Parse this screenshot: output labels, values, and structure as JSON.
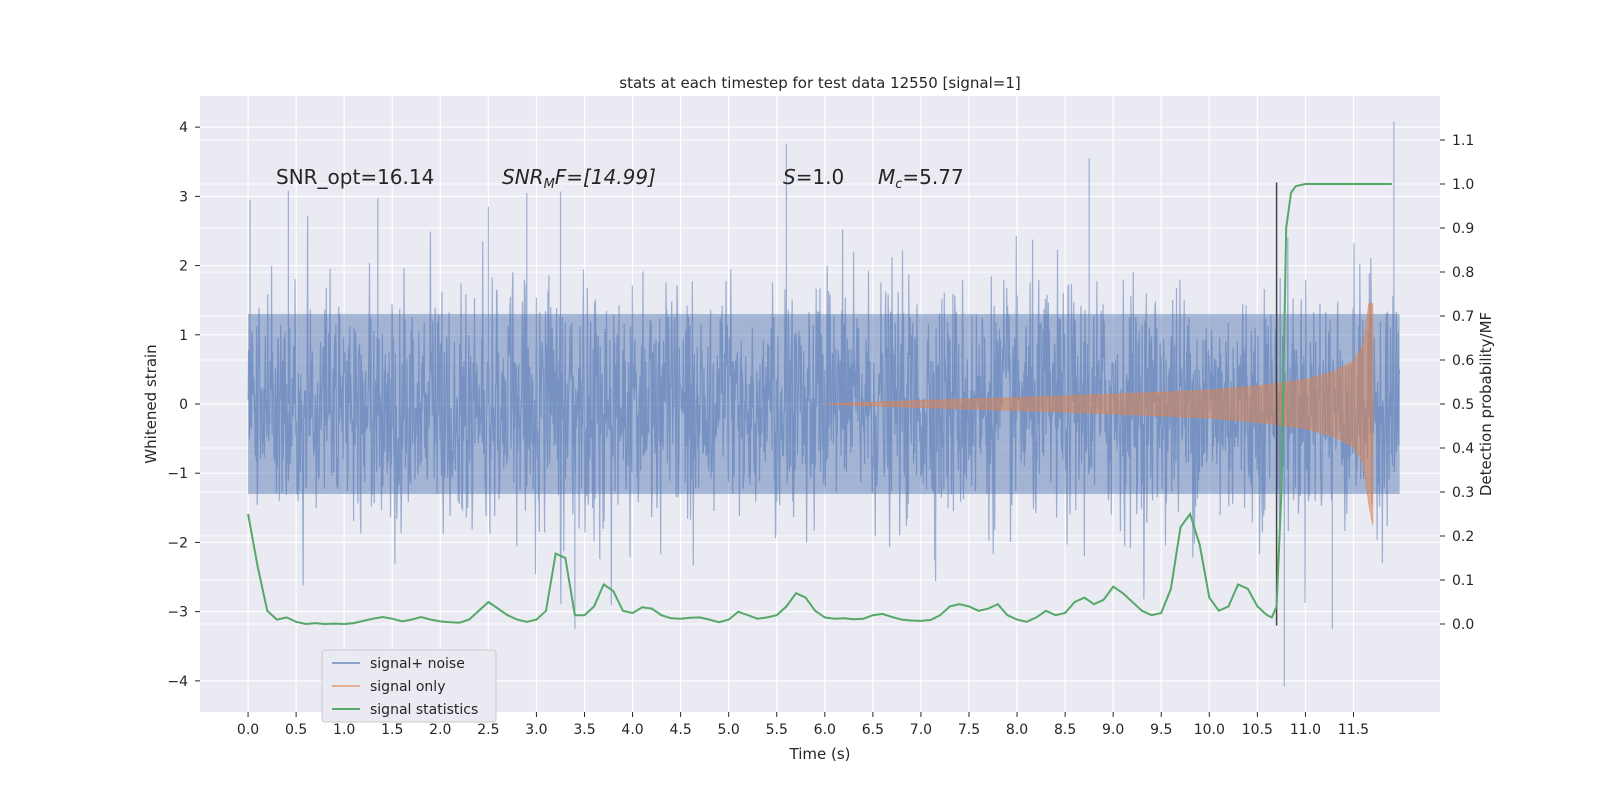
{
  "chart_data": {
    "type": "line",
    "title": "stats at each timestep for test data 12550 [signal=1]",
    "xlabel": "Time (s)",
    "ylabel_left": "Whitened strain",
    "ylabel_right": "Detection probability/MF",
    "xlim": [
      -0.5,
      12.4
    ],
    "ylim_left": [
      -4.45,
      4.45
    ],
    "ylim_right": [
      -0.2,
      1.2
    ],
    "x_ticks": [
      0.0,
      0.5,
      1.0,
      1.5,
      2.0,
      2.5,
      3.0,
      3.5,
      4.0,
      4.5,
      5.0,
      5.5,
      6.0,
      6.5,
      7.0,
      7.5,
      8.0,
      8.5,
      9.0,
      9.5,
      10.0,
      10.5,
      11.0,
      11.5
    ],
    "x_tick_labels": [
      "0.0",
      "0.5",
      "1.0",
      "1.5",
      "2.0",
      "2.5",
      "3.0",
      "3.5",
      "4.0",
      "4.5",
      "5.0",
      "5.5",
      "6.0",
      "6.5",
      "7.0",
      "7.5",
      "8.0",
      "8.5",
      "9.0",
      "9.5",
      "10.0",
      "10.5",
      "11.0",
      "11.5"
    ],
    "y_left_ticks": [
      4,
      3,
      2,
      1,
      0,
      -1,
      -2,
      -3,
      -4
    ],
    "y_left_tick_labels": [
      "4",
      "3",
      "2",
      "1",
      "0",
      "−1",
      "−2",
      "−3",
      "−4"
    ],
    "y_right_ticks": [
      1.1,
      1.0,
      0.9,
      0.8,
      0.7,
      0.6,
      0.5,
      0.4,
      0.3,
      0.2,
      0.1,
      0.0
    ],
    "y_right_tick_labels": [
      "1.1",
      "1.0",
      "0.9",
      "0.8",
      "0.7",
      "0.6",
      "0.5",
      "0.4",
      "0.3",
      "0.2",
      "0.1",
      "0.0"
    ],
    "grid": true,
    "legend_position": "lower-left",
    "series": [
      {
        "name": "signal+ noise",
        "color": "#4c72b0",
        "axis": "left",
        "description_values": {
          "x_range": [
            0.0,
            11.98
          ],
          "typical_band": [
            -1.3,
            1.3
          ],
          "peaks": [
            {
              "x": 0.02,
              "y": 2.95
            },
            {
              "x": 0.42,
              "y": 3.08
            },
            {
              "x": 1.35,
              "y": 2.97
            },
            {
              "x": 2.5,
              "y": 2.85
            },
            {
              "x": 2.9,
              "y": 3.05
            },
            {
              "x": 3.25,
              "y": 3.07
            },
            {
              "x": 5.6,
              "y": 3.75
            },
            {
              "x": 8.75,
              "y": 3.55
            },
            {
              "x": 11.92,
              "y": 4.08
            },
            {
              "x": 3.4,
              "y": -3.25
            },
            {
              "x": 10.78,
              "y": -4.08
            },
            {
              "x": 11.28,
              "y": -3.25
            }
          ]
        }
      },
      {
        "name": "signal only",
        "color": "#dd8452",
        "axis": "left",
        "description_values": {
          "x_start": 6.0,
          "x_end": 11.7,
          "envelope": [
            {
              "x": 6.0,
              "y": 0.0
            },
            {
              "x": 7.0,
              "y": 0.05
            },
            {
              "x": 8.0,
              "y": 0.09
            },
            {
              "x": 9.0,
              "y": 0.14
            },
            {
              "x": 10.0,
              "y": 0.2
            },
            {
              "x": 10.5,
              "y": 0.26
            },
            {
              "x": 11.0,
              "y": 0.35
            },
            {
              "x": 11.3,
              "y": 0.47
            },
            {
              "x": 11.5,
              "y": 0.62
            },
            {
              "x": 11.6,
              "y": 0.85
            },
            {
              "x": 11.66,
              "y": 1.45
            },
            {
              "x": 11.7,
              "y": 1.45
            }
          ],
          "min_at_end": -1.75
        }
      },
      {
        "name": "signal statistics",
        "color": "#55a868",
        "axis": "right",
        "x": [
          0.0,
          0.1,
          0.2,
          0.3,
          0.4,
          0.5,
          0.6,
          0.7,
          0.8,
          0.9,
          1.0,
          1.1,
          1.2,
          1.3,
          1.4,
          1.5,
          1.6,
          1.7,
          1.8,
          1.9,
          2.0,
          2.1,
          2.2,
          2.3,
          2.4,
          2.5,
          2.6,
          2.7,
          2.8,
          2.9,
          3.0,
          3.1,
          3.2,
          3.3,
          3.4,
          3.5,
          3.6,
          3.7,
          3.8,
          3.9,
          4.0,
          4.1,
          4.2,
          4.3,
          4.4,
          4.5,
          4.6,
          4.7,
          4.8,
          4.9,
          5.0,
          5.1,
          5.2,
          5.3,
          5.4,
          5.5,
          5.6,
          5.7,
          5.8,
          5.9,
          6.0,
          6.1,
          6.2,
          6.3,
          6.4,
          6.5,
          6.6,
          6.7,
          6.8,
          6.9,
          7.0,
          7.1,
          7.2,
          7.3,
          7.4,
          7.5,
          7.6,
          7.7,
          7.8,
          7.9,
          8.0,
          8.1,
          8.2,
          8.3,
          8.4,
          8.5,
          8.6,
          8.7,
          8.8,
          8.9,
          9.0,
          9.1,
          9.2,
          9.3,
          9.4,
          9.5,
          9.6,
          9.7,
          9.8,
          9.9,
          10.0,
          10.1,
          10.2,
          10.3,
          10.4,
          10.5,
          10.6,
          10.65,
          10.7,
          10.75,
          10.8,
          10.85,
          10.9,
          11.0,
          11.2,
          11.5,
          11.9
        ],
        "values": [
          0.25,
          0.13,
          0.03,
          0.01,
          0.015,
          0.005,
          0.0,
          0.002,
          0.0,
          0.001,
          0.0,
          0.002,
          0.007,
          0.012,
          0.016,
          0.012,
          0.006,
          0.01,
          0.016,
          0.01,
          0.006,
          0.004,
          0.003,
          0.01,
          0.03,
          0.05,
          0.035,
          0.02,
          0.01,
          0.005,
          0.01,
          0.03,
          0.16,
          0.15,
          0.02,
          0.02,
          0.04,
          0.09,
          0.075,
          0.03,
          0.025,
          0.038,
          0.035,
          0.02,
          0.013,
          0.012,
          0.014,
          0.015,
          0.01,
          0.004,
          0.01,
          0.028,
          0.02,
          0.012,
          0.015,
          0.02,
          0.04,
          0.07,
          0.06,
          0.03,
          0.015,
          0.012,
          0.013,
          0.011,
          0.012,
          0.02,
          0.023,
          0.016,
          0.01,
          0.008,
          0.007,
          0.009,
          0.02,
          0.04,
          0.045,
          0.04,
          0.03,
          0.035,
          0.045,
          0.02,
          0.01,
          0.005,
          0.015,
          0.03,
          0.02,
          0.025,
          0.05,
          0.06,
          0.045,
          0.055,
          0.085,
          0.07,
          0.05,
          0.03,
          0.02,
          0.025,
          0.08,
          0.22,
          0.25,
          0.18,
          0.06,
          0.03,
          0.04,
          0.09,
          0.08,
          0.04,
          0.02,
          0.015,
          0.04,
          0.3,
          0.9,
          0.98,
          0.995,
          1.0,
          1.0,
          1.0,
          1.0
        ]
      }
    ],
    "vertical_lines": [
      {
        "x": 10.7,
        "color": "#444444",
        "y_from": -3.2,
        "y_to": 3.2,
        "axis": "left"
      }
    ]
  },
  "annotations": {
    "snr_opt": "SNR_opt=16.14",
    "snr_mf_label": "SNR",
    "snr_mf_sub": "M",
    "snr_mf_rest": "F=[14.99]",
    "s_label": "S",
    "s_rest": "=1.0",
    "mc_label": "M",
    "mc_sub": "c",
    "mc_rest": "=5.77"
  },
  "legend": {
    "items": [
      {
        "label": "signal+ noise",
        "color": "#4c72b0"
      },
      {
        "label": "signal only",
        "color": "#dd8452"
      },
      {
        "label": "signal statistics",
        "color": "#55a868"
      }
    ]
  },
  "colors": {
    "plot_background": "#eaeaf2",
    "grid": "#ffffff"
  }
}
